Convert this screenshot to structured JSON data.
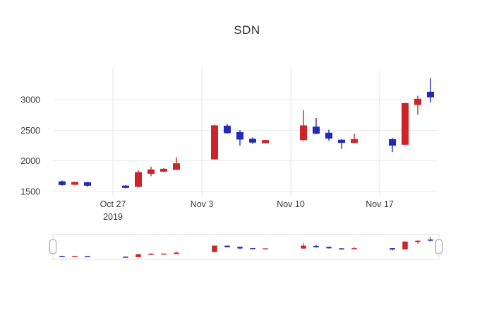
{
  "chart_data": {
    "type": "candlestick",
    "title": "SDN",
    "background": "#ffffff",
    "legend": "none",
    "grid": "on",
    "rangeslider": true,
    "colors": {
      "increasing": "#cc2529",
      "decreasing": "#2428b8",
      "grid": "#e4e4e4",
      "tick_text": "#3a3a3a",
      "handle_border": "#9a9a9a",
      "slider_border": "#e2e2e2"
    },
    "x_axis": {
      "ticks": [
        {
          "label": "Oct 27",
          "sublabel": "2019",
          "day": 5
        },
        {
          "label": "Nov 3",
          "sublabel": "",
          "day": 12
        },
        {
          "label": "Nov 10",
          "sublabel": "",
          "day": 19
        },
        {
          "label": "Nov 17",
          "sublabel": "",
          "day": 26
        }
      ]
    },
    "y_axis": {
      "ticks": [
        1500,
        2000,
        2500,
        3000
      ],
      "range": [
        1430,
        3510
      ]
    },
    "candles": [
      {
        "date": "Oct 23",
        "day": 1,
        "open": 1660,
        "high": 1680,
        "low": 1595,
        "close": 1610
      },
      {
        "date": "Oct 24",
        "day": 2,
        "open": 1615,
        "high": 1655,
        "low": 1600,
        "close": 1650
      },
      {
        "date": "Oct 25",
        "day": 3,
        "open": 1645,
        "high": 1660,
        "low": 1575,
        "close": 1600
      },
      {
        "date": "Oct 28",
        "day": 6,
        "open": 1590,
        "high": 1605,
        "low": 1550,
        "close": 1565
      },
      {
        "date": "Oct 29",
        "day": 7,
        "open": 1580,
        "high": 1845,
        "low": 1565,
        "close": 1810
      },
      {
        "date": "Oct 30",
        "day": 8,
        "open": 1795,
        "high": 1905,
        "low": 1750,
        "close": 1855
      },
      {
        "date": "Oct 31",
        "day": 9,
        "open": 1830,
        "high": 1880,
        "low": 1815,
        "close": 1865
      },
      {
        "date": "Nov 1",
        "day": 10,
        "open": 1860,
        "high": 2060,
        "low": 1850,
        "close": 1955
      },
      {
        "date": "Nov 4",
        "day": 13,
        "open": 2030,
        "high": 2590,
        "low": 2020,
        "close": 2575
      },
      {
        "date": "Nov 5",
        "day": 14,
        "open": 2570,
        "high": 2605,
        "low": 2445,
        "close": 2460
      },
      {
        "date": "Nov 6",
        "day": 15,
        "open": 2465,
        "high": 2505,
        "low": 2250,
        "close": 2355
      },
      {
        "date": "Nov 7",
        "day": 16,
        "open": 2355,
        "high": 2385,
        "low": 2275,
        "close": 2305
      },
      {
        "date": "Nov 8",
        "day": 17,
        "open": 2295,
        "high": 2345,
        "low": 2285,
        "close": 2335
      },
      {
        "date": "Nov 11",
        "day": 20,
        "open": 2345,
        "high": 2830,
        "low": 2325,
        "close": 2575
      },
      {
        "date": "Nov 12",
        "day": 21,
        "open": 2555,
        "high": 2700,
        "low": 2435,
        "close": 2450
      },
      {
        "date": "Nov 13",
        "day": 22,
        "open": 2455,
        "high": 2510,
        "low": 2330,
        "close": 2370
      },
      {
        "date": "Nov 14",
        "day": 23,
        "open": 2340,
        "high": 2360,
        "low": 2195,
        "close": 2300
      },
      {
        "date": "Nov 15",
        "day": 24,
        "open": 2300,
        "high": 2445,
        "low": 2290,
        "close": 2350
      },
      {
        "date": "Nov 18",
        "day": 27,
        "open": 2350,
        "high": 2375,
        "low": 2145,
        "close": 2255
      },
      {
        "date": "Nov 19",
        "day": 28,
        "open": 2270,
        "high": 2950,
        "low": 2260,
        "close": 2940
      },
      {
        "date": "Nov 20",
        "day": 29,
        "open": 2920,
        "high": 3065,
        "low": 2755,
        "close": 3010
      },
      {
        "date": "Nov 21",
        "day": 30,
        "open": 3125,
        "high": 3355,
        "low": 2955,
        "close": 3045
      }
    ]
  }
}
